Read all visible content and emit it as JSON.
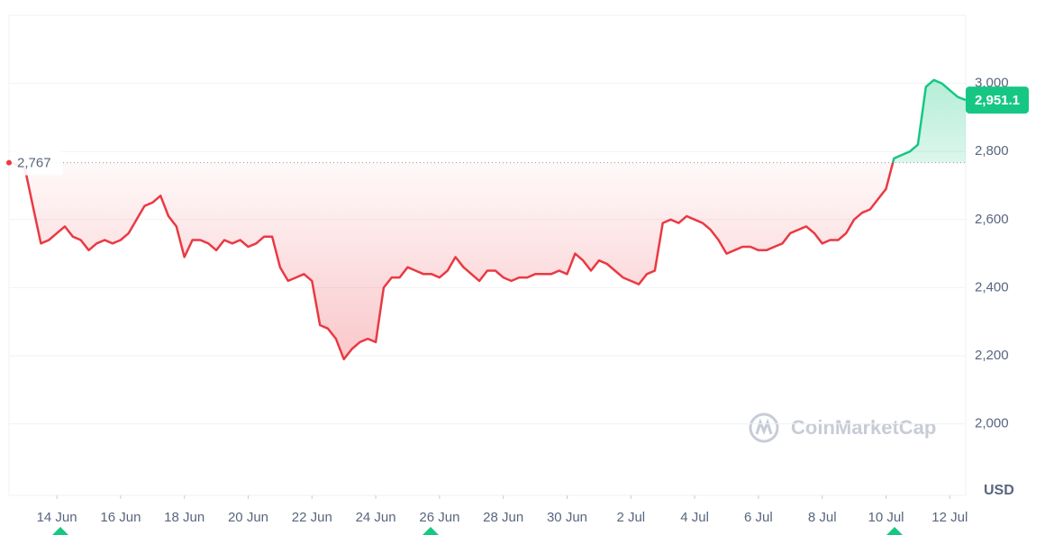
{
  "chart_data": {
    "type": "line",
    "values": [
      2770,
      2760,
      2750,
      2640,
      2530,
      2540,
      2560,
      2580,
      2550,
      2540,
      2510,
      2530,
      2540,
      2530,
      2540,
      2560,
      2600,
      2640,
      2650,
      2670,
      2610,
      2580,
      2490,
      2540,
      2540,
      2530,
      2510,
      2540,
      2530,
      2540,
      2520,
      2530,
      2550,
      2550,
      2460,
      2420,
      2430,
      2440,
      2420,
      2290,
      2280,
      2250,
      2190,
      2220,
      2240,
      2250,
      2240,
      2400,
      2430,
      2430,
      2460,
      2450,
      2440,
      2440,
      2430,
      2450,
      2490,
      2460,
      2440,
      2420,
      2450,
      2450,
      2430,
      2420,
      2430,
      2430,
      2440,
      2440,
      2440,
      2450,
      2440,
      2500,
      2480,
      2450,
      2480,
      2470,
      2450,
      2430,
      2420,
      2410,
      2440,
      2450,
      2590,
      2600,
      2590,
      2610,
      2600,
      2590,
      2570,
      2540,
      2500,
      2510,
      2520,
      2520,
      2510,
      2510,
      2520,
      2530,
      2560,
      2570,
      2580,
      2560,
      2530,
      2540,
      2540,
      2560,
      2600,
      2620,
      2630,
      2660,
      2690,
      2780,
      2790,
      2800,
      2820,
      2990,
      3010,
      3000,
      2980,
      2960,
      2951.1
    ],
    "last_label": "2,951.1",
    "baseline": {
      "value": 2767,
      "label": "2,767"
    },
    "up_color": "#16c784",
    "down_color": "#ea3943",
    "xlim": [
      0,
      120
    ],
    "xticks": [
      {
        "value": 6,
        "label": "14 Jun"
      },
      {
        "value": 14,
        "label": "16 Jun"
      },
      {
        "value": 22,
        "label": "18 Jun"
      },
      {
        "value": 30,
        "label": "20 Jun"
      },
      {
        "value": 38,
        "label": "22 Jun"
      },
      {
        "value": 46,
        "label": "24 Jun"
      },
      {
        "value": 54,
        "label": "26 Jun"
      },
      {
        "value": 62,
        "label": "28 Jun"
      },
      {
        "value": 70,
        "label": "30 Jun"
      },
      {
        "value": 78,
        "label": "2 Jul"
      },
      {
        "value": 86,
        "label": "4 Jul"
      },
      {
        "value": 94,
        "label": "6 Jul"
      },
      {
        "value": 102,
        "label": "8 Jul"
      },
      {
        "value": 110,
        "label": "10 Jul"
      },
      {
        "value": 118,
        "label": "12 Jul"
      }
    ],
    "ylim": [
      1790,
      3200
    ],
    "yticks": [
      {
        "value": 2000,
        "label": "2,000"
      },
      {
        "value": 2200,
        "label": "2,200"
      },
      {
        "value": 2400,
        "label": "2,400"
      },
      {
        "value": 2600,
        "label": "2,600"
      },
      {
        "value": 2800,
        "label": "2,800"
      },
      {
        "value": 3000,
        "label": "3,000"
      }
    ],
    "y_unit": "USD",
    "watermark": "CoinMarketCap",
    "grid": true
  }
}
